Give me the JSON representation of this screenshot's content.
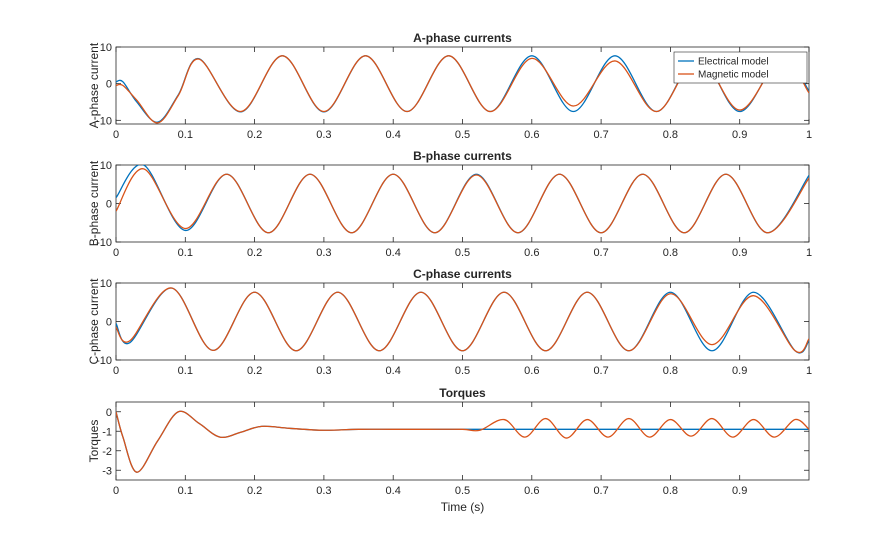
{
  "chart_data": [
    {
      "type": "line",
      "title": "A-phase currents",
      "xlabel": "",
      "ylabel": "A-phase current",
      "xlim": [
        0,
        1
      ],
      "ylim": [
        -11,
        10
      ],
      "xticks": [
        0,
        0.1,
        0.2,
        0.3,
        0.4,
        0.5,
        0.6,
        0.7,
        0.8,
        0.9,
        1
      ],
      "xtick_labels": [
        "0",
        "0.1",
        "0.2",
        "0.3",
        "0.4",
        "0.5",
        "0.6",
        "0.7",
        "0.8",
        "0.9",
        "1"
      ],
      "yticks": [
        -10,
        0,
        10
      ],
      "ytick_labels": [
        "-10",
        "0",
        "10"
      ],
      "grid": false,
      "legend": {
        "placement": "top-right",
        "entries": [
          "Electrical model",
          "Magnetic model"
        ]
      },
      "series": [
        {
          "name": "Electrical model",
          "color": "#0072BD",
          "x": [
            0,
            0.01,
            0.03,
            0.06,
            0.09,
            0.12,
            0.18,
            0.24,
            0.3,
            0.36,
            0.42,
            0.48,
            0.54,
            0.6,
            0.66,
            0.72,
            0.78,
            0.84,
            0.9,
            0.96,
            1.0
          ],
          "y": [
            0.5,
            0.5,
            -5,
            -10.5,
            -3,
            6.8,
            -7.7,
            7.6,
            -7.7,
            7.6,
            -7.6,
            7.6,
            -7.6,
            7.6,
            -7.6,
            7.6,
            -7.6,
            7.6,
            -7.6,
            7.6,
            -2
          ]
        },
        {
          "name": "Magnetic model",
          "color": "#D95319",
          "x": [
            0,
            0.01,
            0.03,
            0.06,
            0.09,
            0.12,
            0.18,
            0.24,
            0.3,
            0.36,
            0.42,
            0.48,
            0.54,
            0.6,
            0.66,
            0.72,
            0.78,
            0.84,
            0.9,
            0.96,
            1.0
          ],
          "y": [
            -0.5,
            -0.5,
            -4.5,
            -10.7,
            -3.2,
            6.7,
            -7.6,
            7.6,
            -7.6,
            7.6,
            -7.6,
            7.6,
            -7.6,
            6.9,
            -6.1,
            6.2,
            -7.6,
            7.2,
            -7.2,
            7.0,
            -2.5
          ]
        }
      ]
    },
    {
      "type": "line",
      "title": "B-phase currents",
      "xlabel": "",
      "ylabel": "B-phase current",
      "xlim": [
        0,
        1
      ],
      "ylim": [
        -10,
        10
      ],
      "xticks": [
        0,
        0.1,
        0.2,
        0.3,
        0.4,
        0.5,
        0.6,
        0.7,
        0.8,
        0.9,
        1
      ],
      "xtick_labels": [
        "0",
        "0.1",
        "0.2",
        "0.3",
        "0.4",
        "0.5",
        "0.6",
        "0.7",
        "0.8",
        "0.9",
        "1"
      ],
      "yticks": [
        -10,
        0,
        10
      ],
      "ytick_labels": [
        "-10",
        "0",
        "10"
      ],
      "grid": false,
      "series": [
        {
          "name": "Electrical model",
          "color": "#0072BD",
          "x": [
            0,
            0.04,
            0.1,
            0.16,
            0.22,
            0.28,
            0.34,
            0.4,
            0.46,
            0.52,
            0.58,
            0.64,
            0.7,
            0.76,
            0.82,
            0.88,
            0.94,
            1.0
          ],
          "y": [
            1.5,
            10.0,
            -7.0,
            7.6,
            -7.6,
            7.6,
            -7.6,
            7.6,
            -7.6,
            7.6,
            -7.6,
            7.6,
            -7.6,
            7.6,
            -7.6,
            7.6,
            -7.6,
            7.3
          ]
        },
        {
          "name": "Magnetic model",
          "color": "#D95319",
          "x": [
            0,
            0.04,
            0.1,
            0.16,
            0.22,
            0.28,
            0.34,
            0.4,
            0.46,
            0.52,
            0.58,
            0.64,
            0.7,
            0.76,
            0.82,
            0.88,
            0.94,
            1.0
          ],
          "y": [
            -2.0,
            9.0,
            -6.5,
            7.6,
            -7.6,
            7.6,
            -7.6,
            7.6,
            -7.6,
            7.4,
            -7.6,
            7.6,
            -7.6,
            7.6,
            -7.6,
            7.6,
            -7.6,
            6.6
          ]
        }
      ]
    },
    {
      "type": "line",
      "title": "C-phase currents",
      "xlabel": "",
      "ylabel": "C-phase current",
      "xlim": [
        0,
        1
      ],
      "ylim": [
        -10,
        10
      ],
      "xticks": [
        0,
        0.1,
        0.2,
        0.3,
        0.4,
        0.5,
        0.6,
        0.7,
        0.8,
        0.9,
        1
      ],
      "xtick_labels": [
        "0",
        "0.1",
        "0.2",
        "0.3",
        "0.4",
        "0.5",
        "0.6",
        "0.7",
        "0.8",
        "0.9",
        "1"
      ],
      "yticks": [
        -10,
        0,
        10
      ],
      "ytick_labels": [
        "-10",
        "0",
        "10"
      ],
      "grid": false,
      "series": [
        {
          "name": "Electrical model",
          "color": "#0072BD",
          "x": [
            0,
            0.02,
            0.08,
            0.14,
            0.2,
            0.26,
            0.32,
            0.38,
            0.44,
            0.5,
            0.56,
            0.62,
            0.68,
            0.74,
            0.8,
            0.86,
            0.92,
            0.98,
            1.0
          ],
          "y": [
            -0.5,
            -5.5,
            8.7,
            -7.5,
            7.6,
            -7.6,
            7.6,
            -7.6,
            7.6,
            -7.6,
            7.6,
            -7.6,
            7.6,
            -7.6,
            7.6,
            -7.6,
            7.6,
            -7.6,
            -5.0
          ]
        },
        {
          "name": "Magnetic model",
          "color": "#D95319",
          "x": [
            0,
            0.02,
            0.08,
            0.14,
            0.2,
            0.26,
            0.32,
            0.38,
            0.44,
            0.5,
            0.56,
            0.62,
            0.68,
            0.74,
            0.8,
            0.86,
            0.92,
            0.98,
            1.0
          ],
          "y": [
            -1.5,
            -5.0,
            8.7,
            -7.5,
            7.6,
            -7.6,
            7.6,
            -7.6,
            7.6,
            -7.6,
            7.6,
            -7.6,
            7.6,
            -7.6,
            7.2,
            -6.0,
            6.7,
            -7.6,
            -4.5
          ]
        }
      ]
    },
    {
      "type": "line",
      "title": "Torques",
      "xlabel": "Time (s)",
      "ylabel": "Torques",
      "xlim": [
        0,
        1
      ],
      "ylim": [
        -3.5,
        0.5
      ],
      "xticks": [
        0,
        0.1,
        0.2,
        0.3,
        0.4,
        0.5,
        0.6,
        0.7,
        0.8,
        0.9
      ],
      "xtick_labels": [
        "0",
        "0.1",
        "0.2",
        "0.3",
        "0.4",
        "0.5",
        "0.6",
        "0.7",
        "0.8",
        "0.9"
      ],
      "yticks": [
        -3,
        -2,
        -1,
        0
      ],
      "ytick_labels": [
        "-3",
        "-2",
        "-1",
        "0"
      ],
      "grid": false,
      "series": [
        {
          "name": "Electrical model",
          "color": "#0072BD",
          "x": [
            0,
            0.01,
            0.03,
            0.06,
            0.09,
            0.12,
            0.15,
            0.18,
            0.21,
            0.25,
            0.3,
            0.35,
            0.4,
            0.45,
            0.5,
            0.55,
            0.6,
            0.7,
            0.8,
            0.9,
            1.0
          ],
          "y": [
            0.0,
            -1.3,
            -3.1,
            -1.5,
            0.0,
            -0.6,
            -1.3,
            -1.05,
            -0.75,
            -0.85,
            -0.95,
            -0.9,
            -0.9,
            -0.9,
            -0.9,
            -0.9,
            -0.9,
            -0.9,
            -0.9,
            -0.9,
            -0.9
          ]
        },
        {
          "name": "Magnetic model",
          "color": "#D95319",
          "x": [
            0,
            0.01,
            0.03,
            0.06,
            0.09,
            0.12,
            0.15,
            0.18,
            0.21,
            0.25,
            0.3,
            0.35,
            0.4,
            0.45,
            0.5,
            0.525,
            0.56,
            0.59,
            0.62,
            0.65,
            0.68,
            0.71,
            0.74,
            0.77,
            0.8,
            0.83,
            0.86,
            0.89,
            0.92,
            0.95,
            0.98,
            1.0
          ],
          "y": [
            0.0,
            -1.3,
            -3.1,
            -1.5,
            0.0,
            -0.6,
            -1.3,
            -1.05,
            -0.75,
            -0.85,
            -0.95,
            -0.9,
            -0.9,
            -0.9,
            -0.9,
            -0.95,
            -0.4,
            -1.3,
            -0.35,
            -1.35,
            -0.4,
            -1.3,
            -0.35,
            -1.3,
            -0.4,
            -1.25,
            -0.35,
            -1.3,
            -0.4,
            -1.3,
            -0.4,
            -0.9
          ]
        }
      ]
    }
  ]
}
